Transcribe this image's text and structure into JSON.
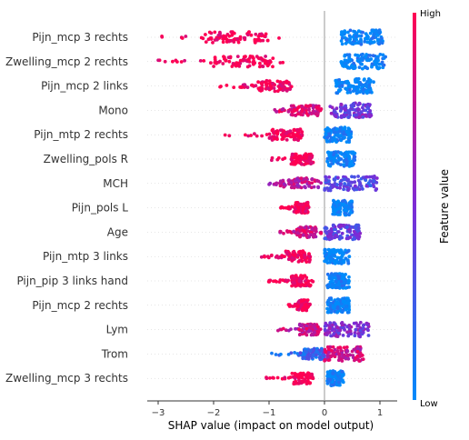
{
  "chart_data": {
    "type": "scatter",
    "subtype": "shap-beeswarm",
    "xlabel": "SHAP value (impact on model output)",
    "xlim": [
      -3.3,
      1.35
    ],
    "xticks": [
      -3,
      -2,
      -1,
      0,
      1
    ],
    "grid": false,
    "colorbar": {
      "label": "Feature value",
      "high_label": "High",
      "low_label": "Low",
      "low_color": "#008bfb",
      "high_color": "#ff0052"
    },
    "features": [
      {
        "name": "Pijn_mcp 3 rechts",
        "neg_range": [
          -3.0,
          -0.8
        ],
        "neg_dense": [
          -2.2,
          -1.0
        ],
        "neg_value": 1.0,
        "pos_range": [
          0.3,
          1.05
        ],
        "pos_value": 0.0
      },
      {
        "name": "Zwelling_mcp 2 rechts",
        "neg_range": [
          -3.0,
          -0.65
        ],
        "neg_dense": [
          -2.0,
          -0.9
        ],
        "neg_value": 1.0,
        "pos_range": [
          0.3,
          1.1
        ],
        "pos_value": 0.0
      },
      {
        "name": "Pijn_mcp 2 links",
        "neg_range": [
          -1.9,
          -0.55
        ],
        "neg_dense": [
          -1.2,
          -0.6
        ],
        "neg_value": 1.0,
        "pos_range": [
          0.2,
          0.9
        ],
        "pos_value": 0.0
      },
      {
        "name": "Mono",
        "neg_range": [
          -0.9,
          -0.05
        ],
        "neg_dense": [
          -0.6,
          -0.1
        ],
        "neg_value": 0.85,
        "pos_range": [
          0.1,
          0.85
        ],
        "pos_value": 0.45
      },
      {
        "name": "Pijn_mtp 2 rechts",
        "neg_range": [
          -1.8,
          -0.35
        ],
        "neg_dense": [
          -1.0,
          -0.4
        ],
        "neg_value": 1.0,
        "pos_range": [
          0.0,
          0.5
        ],
        "pos_value": 0.0
      },
      {
        "name": "Zwelling_pols R",
        "neg_range": [
          -1.1,
          -0.2
        ],
        "neg_dense": [
          -0.6,
          -0.2
        ],
        "neg_value": 1.0,
        "pos_range": [
          0.05,
          0.55
        ],
        "pos_value": 0.0
      },
      {
        "name": "MCH",
        "neg_range": [
          -1.05,
          -0.05
        ],
        "neg_dense": [
          -0.8,
          -0.1
        ],
        "neg_value": 0.75,
        "pos_range": [
          0.0,
          0.95
        ],
        "pos_value": 0.35
      },
      {
        "name": "Pijn_pols L",
        "neg_range": [
          -0.8,
          -0.25
        ],
        "neg_dense": [
          -0.55,
          -0.3
        ],
        "neg_value": 1.0,
        "pos_range": [
          0.15,
          0.5
        ],
        "pos_value": 0.0
      },
      {
        "name": "Age",
        "neg_range": [
          -0.85,
          -0.05
        ],
        "neg_dense": [
          -0.5,
          -0.15
        ],
        "neg_value": 0.8,
        "pos_range": [
          0.0,
          0.65
        ],
        "pos_value": 0.4
      },
      {
        "name": "Pijn_mtp 3 links",
        "neg_range": [
          -1.15,
          -0.2
        ],
        "neg_dense": [
          -0.7,
          -0.25
        ],
        "neg_value": 1.0,
        "pos_range": [
          0.0,
          0.45
        ],
        "pos_value": 0.0
      },
      {
        "name": "Pijn_pip 3 links hand",
        "neg_range": [
          -1.05,
          -0.2
        ],
        "neg_dense": [
          -0.6,
          -0.25
        ],
        "neg_value": 1.0,
        "pos_range": [
          0.05,
          0.45
        ],
        "pos_value": 0.0
      },
      {
        "name": "Pijn_mcp 2 rechts",
        "neg_range": [
          -0.65,
          -0.25
        ],
        "neg_dense": [
          -0.5,
          -0.3
        ],
        "neg_value": 1.0,
        "pos_range": [
          0.05,
          0.45
        ],
        "pos_value": 0.0
      },
      {
        "name": "Lym",
        "neg_range": [
          -0.85,
          -0.05
        ],
        "neg_dense": [
          -0.45,
          -0.1
        ],
        "neg_value": 0.8,
        "pos_range": [
          0.0,
          0.8
        ],
        "pos_value": 0.5
      },
      {
        "name": "Trom",
        "neg_range": [
          -1.0,
          0.0
        ],
        "neg_dense": [
          -0.4,
          0.0
        ],
        "neg_value": 0.2,
        "pos_range": [
          0.0,
          0.7
        ],
        "pos_value": 0.8
      },
      {
        "name": "Zwelling_mcp 3 rechts",
        "neg_range": [
          -1.05,
          -0.15
        ],
        "neg_dense": [
          -0.6,
          -0.2
        ],
        "neg_value": 1.0,
        "pos_range": [
          0.05,
          0.35
        ],
        "pos_value": 0.0
      }
    ]
  }
}
